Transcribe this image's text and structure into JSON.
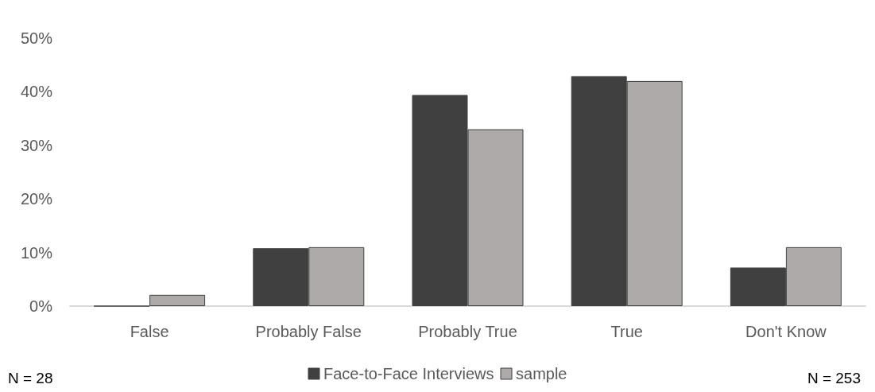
{
  "chart_data": {
    "type": "bar",
    "categories": [
      "False",
      "Probably False",
      "Probably True",
      "True",
      "Don't Know"
    ],
    "series": [
      {
        "name": "Face-to-Face Interviews",
        "color": "#404040",
        "values": [
          0,
          10.8,
          39.4,
          42.9,
          7.2
        ]
      },
      {
        "name": "sample",
        "color": "#aeaaaa",
        "values": [
          2.1,
          11.0,
          33.0,
          42.0,
          11.0
        ]
      }
    ],
    "ylim": [
      0,
      50
    ],
    "yticks": [
      {
        "value": 0,
        "label": "0%"
      },
      {
        "value": 10,
        "label": "10%"
      },
      {
        "value": 20,
        "label": "20%"
      },
      {
        "value": 30,
        "label": "30%"
      },
      {
        "value": 40,
        "label": "40%"
      },
      {
        "value": 50,
        "label": "50%"
      }
    ],
    "grid": false,
    "legend": "bottom",
    "annotations": [
      "N = 28",
      "N = 253"
    ]
  }
}
